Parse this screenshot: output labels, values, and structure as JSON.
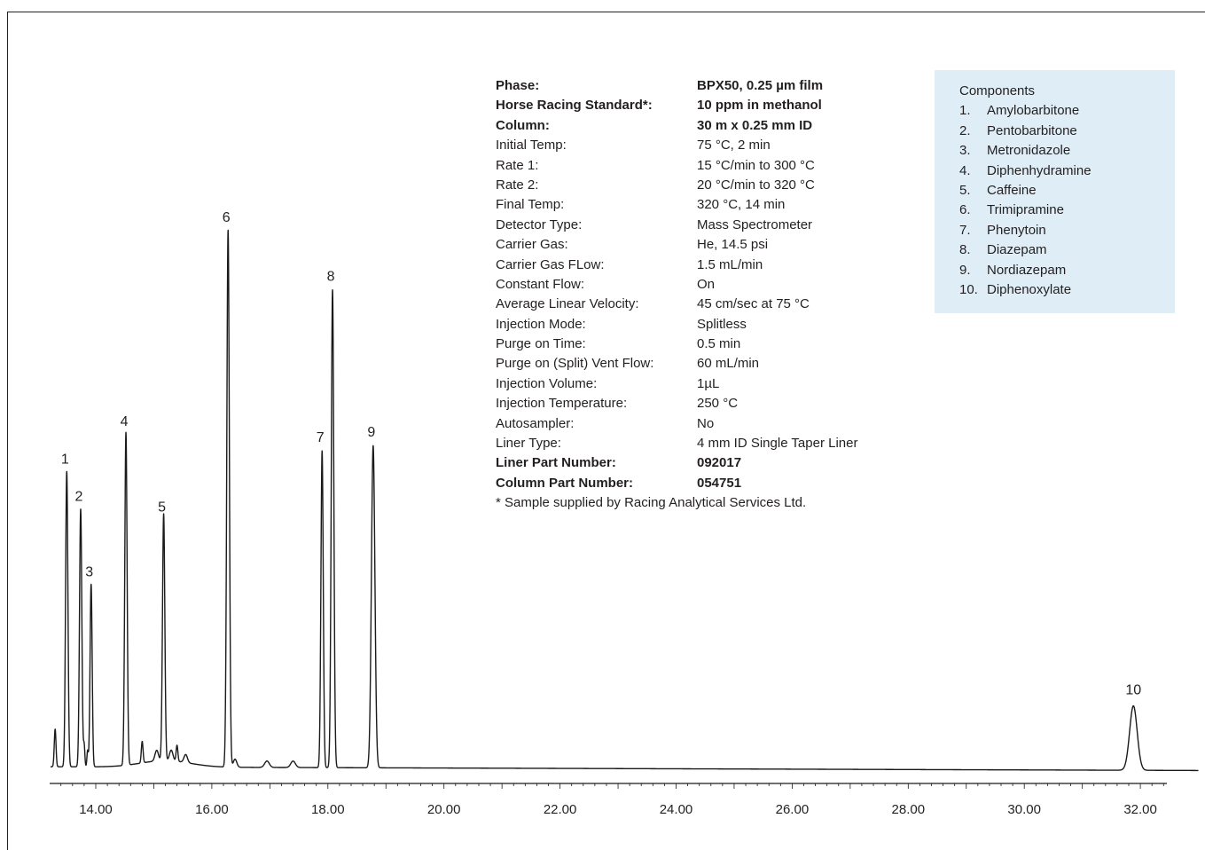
{
  "chart_data": {
    "type": "line",
    "title": "",
    "xlabel": "",
    "ylabel": "",
    "xlim": [
      13.3,
      33.0
    ],
    "ylim": [
      0,
      100
    ],
    "x_ticks": [
      "14.00",
      "16.00",
      "18.00",
      "20.00",
      "22.00",
      "24.00",
      "26.00",
      "28.00",
      "30.00",
      "32.00"
    ],
    "x_tick_values": [
      14,
      16,
      18,
      20,
      22,
      24,
      26,
      28,
      30,
      32
    ],
    "peaks": [
      {
        "label": "1",
        "rt": 13.5,
        "height": 55,
        "width": 0.02
      },
      {
        "label": "2",
        "rt": 13.74,
        "height": 48,
        "width": 0.02
      },
      {
        "label": "3",
        "rt": 13.92,
        "height": 34,
        "width": 0.018
      },
      {
        "label": "4",
        "rt": 14.52,
        "height": 62,
        "width": 0.02
      },
      {
        "label": "5",
        "rt": 15.17,
        "height": 46,
        "width": 0.02
      },
      {
        "label": "6",
        "rt": 16.28,
        "height": 100,
        "width": 0.022
      },
      {
        "label": "7",
        "rt": 17.9,
        "height": 59,
        "width": 0.02
      },
      {
        "label": "8",
        "rt": 18.08,
        "height": 89,
        "width": 0.022
      },
      {
        "label": "9",
        "rt": 18.78,
        "height": 60,
        "width": 0.03
      },
      {
        "label": "10",
        "rt": 31.88,
        "height": 12,
        "width": 0.065
      }
    ],
    "minor_peaks": [
      {
        "rt": 13.3,
        "height": 7,
        "width": 0.015
      },
      {
        "rt": 13.8,
        "height": 4,
        "width": 0.012
      },
      {
        "rt": 13.86,
        "height": 3,
        "width": 0.012
      },
      {
        "rt": 14.8,
        "height": 4,
        "width": 0.015
      },
      {
        "rt": 15.05,
        "height": 2,
        "width": 0.03
      },
      {
        "rt": 15.3,
        "height": 2,
        "width": 0.03
      },
      {
        "rt": 15.4,
        "height": 3,
        "width": 0.015
      },
      {
        "rt": 15.55,
        "height": 1.5,
        "width": 0.03
      },
      {
        "rt": 16.4,
        "height": 1.5,
        "width": 0.03
      },
      {
        "rt": 16.95,
        "height": 1.2,
        "width": 0.04
      },
      {
        "rt": 17.4,
        "height": 1.2,
        "width": 0.04
      }
    ],
    "baseline": {
      "start": 0.8,
      "end": 0.1
    }
  },
  "parameters": [
    {
      "label": "Phase:",
      "value": "BPX50, 0.25 µm film",
      "bold": true
    },
    {
      "label": "Horse Racing Standard*:",
      "value": "10 ppm in methanol",
      "bold": true
    },
    {
      "label": "Column:",
      "value": "30 m x 0.25 mm ID",
      "bold": true
    },
    {
      "label": "Initial Temp:",
      "value": "75 °C, 2 min",
      "bold": false
    },
    {
      "label": "Rate 1:",
      "value": "15 °C/min to 300 °C",
      "bold": false
    },
    {
      "label": "Rate 2:",
      "value": "20 °C/min to 320 °C",
      "bold": false
    },
    {
      "label": "Final Temp:",
      "value": "320 °C, 14 min",
      "bold": false
    },
    {
      "label": "Detector Type:",
      "value": "Mass Spectrometer",
      "bold": false
    },
    {
      "label": "Carrier Gas:",
      "value": "He, 14.5 psi",
      "bold": false
    },
    {
      "label": "Carrier Gas FLow:",
      "value": "1.5 mL/min",
      "bold": false
    },
    {
      "label": "Constant Flow:",
      "value": "On",
      "bold": false
    },
    {
      "label": "Average Linear Velocity:",
      "value": "45 cm/sec at 75 °C",
      "bold": false
    },
    {
      "label": "Injection Mode:",
      "value": "Splitless",
      "bold": false
    },
    {
      "label": "Purge on Time:",
      "value": "0.5 min",
      "bold": false
    },
    {
      "label": "Purge on (Split) Vent Flow:",
      "value": "60 mL/min",
      "bold": false
    },
    {
      "label": "Injection Volume:",
      "value": "1µL",
      "bold": false
    },
    {
      "label": "Injection Temperature:",
      "value": "250 °C",
      "bold": false
    },
    {
      "label": "Autosampler:",
      "value": "No",
      "bold": false
    },
    {
      "label": "Liner Type:",
      "value": "4 mm ID Single Taper Liner",
      "bold": false
    },
    {
      "label": "Liner Part Number:",
      "value": "092017",
      "bold": true
    },
    {
      "label": "Column Part Number:",
      "value": "054751",
      "bold": true
    }
  ],
  "footnote": "* Sample supplied by Racing Analytical Services Ltd.",
  "components": {
    "title": "Components",
    "items": [
      {
        "num": "1.",
        "name": "Amylobarbitone"
      },
      {
        "num": "2.",
        "name": "Pentobarbitone"
      },
      {
        "num": "3.",
        "name": "Metronidazole"
      },
      {
        "num": "4.",
        "name": "Diphenhydramine"
      },
      {
        "num": "5.",
        "name": "Caffeine"
      },
      {
        "num": "6.",
        "name": "Trimipramine"
      },
      {
        "num": "7.",
        "name": "Phenytoin"
      },
      {
        "num": "8.",
        "name": "Diazepam"
      },
      {
        "num": "9.",
        "name": "Nordiazepam"
      },
      {
        "num": "10.",
        "name": "Diphenoxylate"
      }
    ]
  },
  "colors": {
    "trace": "#1a1a1a",
    "axis": "#1a1a1a",
    "text": "#231f20",
    "components_bg": "#dfeef6"
  }
}
